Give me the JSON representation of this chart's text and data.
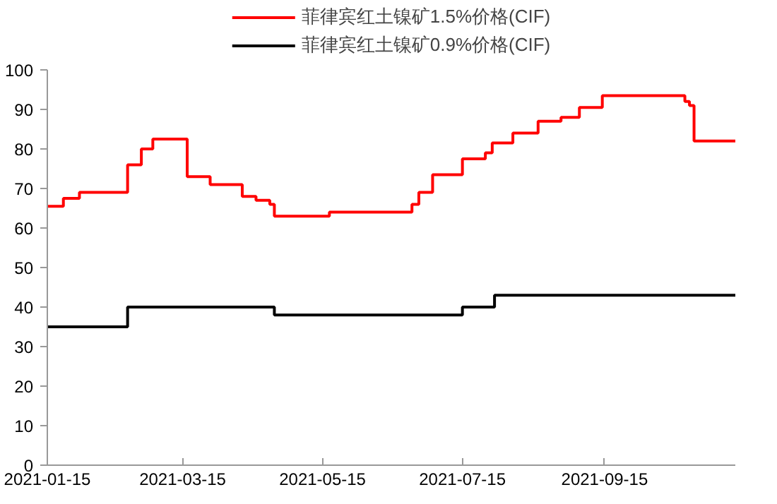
{
  "chart_data": {
    "type": "step",
    "xlim": [
      "2021-01-15",
      "2021-11-11"
    ],
    "xticks": [
      "2021-01-15",
      "2021-03-15",
      "2021-05-15",
      "2021-07-15",
      "2021-09-15"
    ],
    "ylim": [
      0,
      100
    ],
    "yticks": [
      0,
      10,
      20,
      30,
      40,
      50,
      60,
      70,
      80,
      90,
      100
    ],
    "grid": false,
    "legend": "top",
    "line_style": "solid",
    "marker": "none",
    "series": [
      {
        "name": "菲律宾红土镍矿1.5%价格(CIF)",
        "color": "#ff0000",
        "x": [
          "2021-01-15",
          "2021-01-22",
          "2021-01-29",
          "2021-02-19",
          "2021-02-25",
          "2021-03-02",
          "2021-03-17",
          "2021-03-27",
          "2021-04-10",
          "2021-04-16",
          "2021-04-22",
          "2021-04-24",
          "2021-05-18",
          "2021-06-23",
          "2021-06-26",
          "2021-07-02",
          "2021-07-15",
          "2021-07-25",
          "2021-07-28",
          "2021-08-06",
          "2021-08-17",
          "2021-08-27",
          "2021-09-04",
          "2021-09-14",
          "2021-10-20",
          "2021-10-22",
          "2021-10-24",
          "2021-11-11"
        ],
        "values": [
          65.5,
          67.5,
          69,
          76,
          80,
          82.5,
          73,
          71,
          68,
          67,
          66,
          63,
          64,
          66,
          69,
          73.5,
          77.5,
          79,
          81.5,
          84,
          87,
          88,
          90.5,
          93.5,
          92,
          91,
          82,
          82
        ]
      },
      {
        "name": "菲律宾红土镍矿0.9%价格(CIF)",
        "color": "#000000",
        "x": [
          "2021-01-15",
          "2021-02-19",
          "2021-04-24",
          "2021-07-15",
          "2021-07-29",
          "2021-11-11"
        ],
        "values": [
          35,
          40,
          38,
          40,
          43,
          43
        ]
      }
    ]
  }
}
